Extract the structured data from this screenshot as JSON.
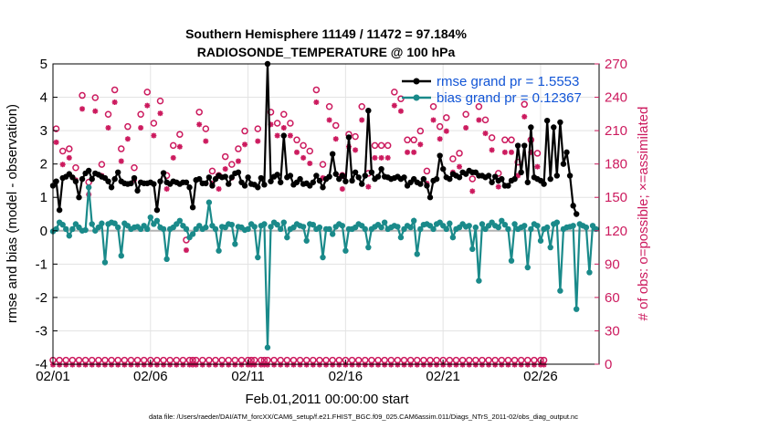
{
  "chart_data": {
    "type": "line",
    "title_line1": "Southern Hemisphere 11149 / 11472 = 97.184%",
    "title_line2": "RADIOSONDE_TEMPERATURE @ 100 hPa",
    "xlabel": "Feb.01,2011 00:00:00 start",
    "ylabel_left": "rmse and bias (model - observation)",
    "ylabel_right": "# of obs: o=possible; ×=assimilated",
    "footnote": "data file: /Users/raeder/DAI/ATM_forcXX/CAM6_setup/f.e21.FHIST_BGC.f09_025.CAM6assim.011/Diags_NTrS_2011-02/obs_diag_output.nc",
    "x_ticks": [
      "02/01",
      "02/06",
      "02/11",
      "02/16",
      "02/21",
      "02/26"
    ],
    "xlim_days": [
      0,
      28
    ],
    "ylim_left": [
      -4,
      5
    ],
    "y_ticks_left": [
      "-4",
      "-3",
      "-2",
      "-1",
      "0",
      "1",
      "2",
      "3",
      "4",
      "5"
    ],
    "ylim_right": [
      0,
      270
    ],
    "y_ticks_right": [
      "0",
      "30",
      "60",
      "90",
      "120",
      "150",
      "180",
      "210",
      "240",
      "270"
    ],
    "grid": true,
    "legend_position": "top-right",
    "colors": {
      "rmse": "#000000",
      "bias": "#1a8a8a",
      "obs": "#cc1a5e",
      "zero_line": "#b3b3b3",
      "legend_text": "#1255d6"
    },
    "series": [
      {
        "name": "rmse grand pr = 1.5553",
        "axis": "left",
        "values": [
          1.35,
          1.48,
          0.62,
          1.58,
          1.62,
          1.7,
          1.6,
          1.48,
          1.0,
          1.55,
          1.72,
          1.8,
          1.55,
          1.72,
          1.68,
          1.62,
          1.58,
          1.48,
          1.3,
          1.55,
          1.75,
          1.48,
          1.42,
          1.4,
          1.42,
          1.58,
          1.2,
          1.45,
          1.42,
          1.42,
          1.45,
          1.4,
          0.62,
          1.48,
          1.73,
          1.45,
          1.4,
          1.48,
          1.45,
          1.4,
          1.45,
          1.45,
          1.3,
          0.7,
          1.52,
          1.55,
          1.42,
          1.42,
          1.6,
          1.35,
          1.55,
          1.65,
          1.6,
          1.62,
          1.4,
          1.6,
          1.72,
          1.75,
          1.45,
          1.35,
          1.6,
          1.4,
          1.38,
          1.3,
          1.58,
          1.38,
          5.0,
          1.48,
          1.62,
          1.68,
          1.45,
          2.85,
          1.6,
          1.65,
          1.38,
          1.45,
          1.55,
          1.4,
          1.42,
          1.35,
          1.45,
          1.65,
          1.5,
          1.3,
          1.55,
          1.62,
          2.3,
          1.7,
          1.55,
          1.65,
          1.48,
          2.8,
          1.5,
          1.75,
          1.6,
          1.4,
          1.65,
          3.6,
          1.75,
          1.55,
          1.62,
          1.85,
          1.62,
          1.6,
          1.55,
          1.58,
          1.62,
          1.55,
          1.6,
          1.35,
          1.45,
          1.55,
          1.45,
          1.4,
          1.55,
          1.35,
          1.0,
          1.5,
          1.55,
          2.25,
          1.85,
          1.6,
          1.55,
          1.7,
          1.65,
          1.6,
          1.75,
          1.7,
          1.8,
          1.75,
          1.75,
          1.65,
          1.65,
          1.6,
          1.65,
          1.45,
          1.62,
          1.5,
          1.55,
          1.35,
          1.35,
          1.5,
          1.55,
          2.55,
          1.75,
          2.55,
          1.45,
          3.1,
          1.6,
          1.55,
          1.5,
          1.4,
          3.3,
          1.55,
          3.1,
          1.65,
          3.25,
          2.0,
          2.35,
          1.65,
          0.75,
          0.5
        ],
        "x_start": 0.0,
        "x_step": 0.1667
      },
      {
        "name": "bias grand pr = 0.12367",
        "axis": "left",
        "values": [
          -0.02,
          0.05,
          0.25,
          0.18,
          0.05,
          -0.15,
          0.05,
          0.2,
          0.1,
          0.0,
          0.02,
          1.3,
          0.2,
          0.0,
          0.1,
          0.22,
          -0.95,
          0.2,
          0.25,
          0.22,
          0.1,
          -0.75,
          0.22,
          0.15,
          0.05,
          0.1,
          0.12,
          0.05,
          0.15,
          0.05,
          0.4,
          0.2,
          0.3,
          0.1,
          0.05,
          -0.85,
          0.05,
          0.1,
          0.2,
          0.3,
          0.15,
          0.05,
          -0.2,
          -0.1,
          0.05,
          0.15,
          0.05,
          0.1,
          0.85,
          0.15,
          0.05,
          -0.6,
          0.12,
          0.1,
          0.2,
          0.18,
          -0.4,
          0.12,
          0.1,
          0.02,
          0.05,
          0.2,
          0.12,
          -0.8,
          0.15,
          0.2,
          -3.5,
          0.12,
          0.25,
          0.18,
          0.05,
          0.25,
          -0.2,
          0.05,
          0.1,
          0.2,
          0.15,
          0.12,
          -0.3,
          0.2,
          0.18,
          0.05,
          0.1,
          -0.8,
          0.05,
          0.05,
          -0.1,
          0.12,
          0.2,
          0.15,
          -0.6,
          0.05,
          0.05,
          0.1,
          0.2,
          0.15,
          0.05,
          -0.5,
          0.05,
          0.12,
          0.18,
          0.1,
          0.25,
          0.05,
          0.1,
          0.15,
          0.12,
          -0.2,
          0.05,
          0.15,
          0.1,
          0.3,
          -0.7,
          0.05,
          0.18,
          0.2,
          0.15,
          0.05,
          0.2,
          0.25,
          0.15,
          0.05,
          0.22,
          -0.2,
          0.05,
          0.1,
          0.2,
          0.12,
          0.15,
          -0.55,
          0.1,
          -1.5,
          0.2,
          0.05,
          0.15,
          0.25,
          0.15,
          0.1,
          0.3,
          0.18,
          0.05,
          -0.9,
          0.2,
          0.05,
          0.1,
          0.15,
          -1.1,
          0.05,
          0.2,
          0.15,
          -0.3,
          0.05,
          0.1,
          -0.5,
          0.2,
          0.25,
          -1.8,
          0.05,
          0.1,
          0.12,
          0.15,
          -2.35,
          0.2,
          0.15,
          0.1,
          -1.25,
          0.15,
          0.05
        ],
        "x_start": 0.0,
        "x_step": 0.1667
      },
      {
        "name": "possible",
        "axis": "right",
        "marker": "circle",
        "values": [
          2,
          210,
          2,
          190,
          2,
          192,
          2,
          175,
          2,
          240,
          2,
          162,
          2,
          238,
          2,
          178,
          2,
          223,
          2,
          245,
          2,
          192,
          2,
          212,
          2,
          175,
          2,
          223,
          2,
          243,
          2,
          215,
          2,
          235,
          2,
          168,
          2,
          195,
          2,
          205,
          2,
          110,
          2,
          2,
          2,
          225,
          2,
          210,
          2,
          172,
          2,
          168,
          2,
          185,
          2,
          178,
          2,
          192,
          2,
          208,
          2,
          2,
          2,
          210,
          2,
          2,
          2,
          225,
          2,
          215,
          2,
          223,
          2,
          215,
          2,
          200,
          2,
          195,
          2,
          190,
          2,
          245,
          2,
          178,
          2,
          230,
          2,
          213,
          2,
          168,
          2,
          205,
          2,
          203,
          2,
          230,
          2,
          170,
          2,
          195,
          2,
          195,
          2,
          195,
          2,
          243,
          2,
          237,
          2,
          200,
          2,
          200,
          2,
          208,
          2,
          172,
          2,
          230,
          2,
          212,
          2,
          220,
          2,
          183,
          2,
          188,
          2,
          223,
          2,
          165,
          2,
          230,
          2,
          218,
          2,
          202,
          2,
          170,
          2,
          200,
          2,
          200,
          2,
          180,
          2,
          232,
          2,
          200,
          2,
          188,
          2,
          2
        ],
        "x_start": 0.0,
        "x_step": 0.1667
      },
      {
        "name": "assimilated",
        "axis": "right",
        "marker": "asterisk",
        "values": [
          2,
          202,
          2,
          182,
          2,
          188,
          2,
          168,
          2,
          232,
          2,
          155,
          2,
          230,
          2,
          172,
          2,
          215,
          2,
          238,
          2,
          185,
          2,
          205,
          2,
          168,
          2,
          215,
          2,
          235,
          2,
          208,
          2,
          228,
          2,
          160,
          2,
          188,
          2,
          198,
          2,
          105,
          2,
          2,
          2,
          218,
          2,
          203,
          2,
          165,
          2,
          160,
          2,
          178,
          2,
          170,
          2,
          185,
          2,
          200,
          2,
          2,
          2,
          203,
          2,
          2,
          2,
          218,
          2,
          208,
          2,
          215,
          2,
          208,
          2,
          193,
          2,
          188,
          2,
          183,
          2,
          238,
          2,
          170,
          2,
          222,
          2,
          205,
          2,
          160,
          2,
          198,
          2,
          195,
          2,
          222,
          2,
          162,
          2,
          188,
          2,
          188,
          2,
          188,
          2,
          235,
          2,
          230,
          2,
          193,
          2,
          193,
          2,
          200,
          2,
          165,
          2,
          222,
          2,
          205,
          2,
          212,
          2,
          175,
          2,
          180,
          2,
          215,
          2,
          158,
          2,
          222,
          2,
          210,
          2,
          195,
          2,
          162,
          2,
          193,
          2,
          193,
          2,
          172,
          2,
          225,
          2,
          193,
          2,
          180,
          2,
          2
        ],
        "x_start": 0.0,
        "x_step": 0.1667
      }
    ]
  }
}
